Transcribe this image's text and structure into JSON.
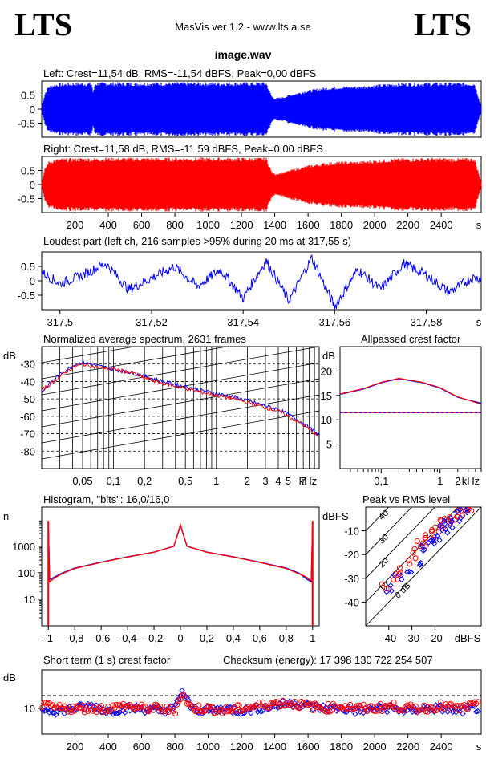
{
  "header": {
    "logo_left": "LTS",
    "logo_right": "LTS",
    "app_title": "MasVis ver 1.2 - www.lts.a.se",
    "file_name": "image.wav"
  },
  "waveform_left": {
    "title": "Left: Crest=11,54 dB, RMS=-11,54 dBFS, Peak=0,00 dBFS",
    "color": "#0000ff",
    "y_ticks": [
      "0.5",
      "0",
      "-0.5"
    ]
  },
  "waveform_right": {
    "title": "Right: Crest=11,58 dB, RMS=-11,59 dBFS, Peak=0,00 dBFS",
    "color": "#ff0000",
    "y_ticks": [
      "0.5",
      "0",
      "-0.5"
    ],
    "x_ticks": [
      "200",
      "400",
      "600",
      "800",
      "1000",
      "1200",
      "1400",
      "1600",
      "1800",
      "2000",
      "2200",
      "2400"
    ],
    "x_unit": "s"
  },
  "loudest_part": {
    "title": "Loudest part (left  ch, 216 samples >95% during 20 ms at 317,55 s)",
    "y_ticks": [
      "0.5",
      "0",
      "-0.5"
    ],
    "x_ticks": [
      "317,5",
      "317,52",
      "317,54",
      "317,56",
      "317,58"
    ],
    "x_unit": "s"
  },
  "spectrum": {
    "title": "Normalized average spectrum, 2631 frames",
    "y_unit": "dB",
    "y_ticks": [
      "-30",
      "-40",
      "-50",
      "-60",
      "-70",
      "-80"
    ],
    "x_ticks": [
      "0,05",
      "0,1",
      "0,2",
      "0,5",
      "1",
      "2",
      "3",
      "4",
      "5",
      "7"
    ],
    "x_unit": "kHz"
  },
  "allpass": {
    "title": "Allpassed crest factor",
    "y_unit": "dB",
    "y_ticks": [
      "20",
      "15",
      "10",
      "5"
    ],
    "x_ticks": [
      "0,1",
      "1",
      "2"
    ],
    "x_unit": "kHz"
  },
  "histogram": {
    "title": "Histogram, \"bits\": 16,0/16,0",
    "y_unit": "n",
    "y_ticks": [
      "1000",
      "100",
      "10"
    ],
    "x_ticks": [
      "-1",
      "-0,8",
      "-0,6",
      "-0,4",
      "-0,2",
      "0",
      "0,2",
      "0,4",
      "0,6",
      "0,8",
      "1"
    ]
  },
  "peak_rms": {
    "title": "Peak vs RMS level",
    "y_unit": "dBFS",
    "y_ticks": [
      "-10",
      "-20",
      "-30",
      "-40"
    ],
    "x_ticks": [
      "-40",
      "-30",
      "-20"
    ],
    "x_unit": "dBFS",
    "diag_labels": [
      "40",
      "30",
      "20",
      "10",
      "0 dB"
    ]
  },
  "short_term": {
    "title": "Short term (1 s) crest factor",
    "checksum": "Checksum (energy):  17 398 130 722 254 507",
    "y_unit": "dB",
    "y_ticks": [
      "10"
    ],
    "x_ticks": [
      "200",
      "400",
      "600",
      "800",
      "1000",
      "1200",
      "1400",
      "1600",
      "1800",
      "2000",
      "2200",
      "2400"
    ],
    "x_unit": "s"
  },
  "chart_data": [
    {
      "type": "area",
      "title": "Left: Crest=11,54 dB, RMS=-11,54 dBFS, Peak=0,00 dBFS",
      "xlim": [
        0,
        2640
      ],
      "ylim": [
        -1,
        1
      ],
      "x": [
        0,
        20,
        40,
        60,
        100,
        200,
        300,
        310,
        320,
        400,
        500,
        600,
        700,
        800,
        900,
        1000,
        1100,
        1200,
        1300,
        1350,
        1380,
        1400,
        1450,
        1500,
        1600,
        1700,
        1800,
        1900,
        2000,
        2100,
        2200,
        2300,
        2400,
        2500,
        2600,
        2640
      ],
      "values": [
        0.1,
        0.6,
        0.85,
        0.9,
        0.95,
        0.98,
        0.98,
        0.6,
        0.98,
        0.99,
        0.99,
        0.99,
        0.99,
        0.99,
        0.99,
        0.99,
        0.99,
        0.99,
        0.99,
        0.99,
        0.5,
        0.4,
        0.45,
        0.55,
        0.7,
        0.8,
        0.85,
        0.85,
        0.9,
        0.95,
        0.97,
        0.98,
        0.98,
        0.97,
        0.98,
        0.1
      ]
    },
    {
      "type": "area",
      "title": "Right: Crest=11,58 dB, RMS=-11,59 dBFS, Peak=0,00 dBFS",
      "xlim": [
        0,
        2640
      ],
      "ylim": [
        -1,
        1
      ],
      "x": [
        0,
        20,
        40,
        60,
        100,
        200,
        300,
        400,
        500,
        600,
        700,
        800,
        900,
        1000,
        1100,
        1200,
        1300,
        1350,
        1380,
        1400,
        1450,
        1500,
        1600,
        1700,
        1800,
        1900,
        2000,
        2100,
        2200,
        2300,
        2400,
        2500,
        2600,
        2640
      ],
      "values": [
        0.1,
        0.6,
        0.85,
        0.9,
        0.95,
        0.98,
        0.98,
        0.99,
        0.99,
        0.99,
        0.99,
        0.99,
        0.99,
        0.99,
        0.99,
        0.99,
        0.99,
        0.99,
        0.5,
        0.4,
        0.45,
        0.55,
        0.7,
        0.8,
        0.85,
        0.85,
        0.9,
        0.95,
        0.97,
        0.98,
        0.98,
        0.97,
        0.98,
        0.1
      ]
    },
    {
      "type": "line",
      "title": "Loudest part (left  ch, 216 samples >95% during 20 ms at 317,55 s)",
      "xlim": [
        317.496,
        317.592
      ],
      "ylim": [
        -1,
        1
      ],
      "x": [
        317.496,
        317.5,
        317.505,
        317.51,
        317.515,
        317.52,
        317.525,
        317.53,
        317.535,
        317.54,
        317.545,
        317.55,
        317.555,
        317.56,
        317.565,
        317.57,
        317.575,
        317.58,
        317.585,
        317.59
      ],
      "values": [
        0.3,
        -0.1,
        0.2,
        0.6,
        -0.3,
        0.1,
        0.5,
        -0.2,
        0.4,
        -0.6,
        0.7,
        -0.7,
        0.8,
        -0.9,
        0.4,
        -0.3,
        0.6,
        0.2,
        -0.4,
        0.1
      ]
    },
    {
      "type": "line",
      "title": "Normalized average spectrum, 2631 frames",
      "xlim": [
        0.02,
        10
      ],
      "ylim": [
        -90,
        -20
      ],
      "x": [
        0.02,
        0.025,
        0.03,
        0.04,
        0.05,
        0.07,
        0.1,
        0.15,
        0.2,
        0.3,
        0.5,
        0.7,
        1,
        1.5,
        2,
        3,
        4,
        5,
        7,
        10
      ],
      "series": [
        {
          "color": "#0000ff",
          "values": [
            -46,
            -40,
            -36,
            -31,
            -29,
            -31,
            -33,
            -35,
            -37,
            -40,
            -43,
            -45,
            -47,
            -49,
            -51,
            -54,
            -56,
            -59,
            -64,
            -71
          ]
        },
        {
          "color": "#ff0000",
          "values": [
            -45,
            -41,
            -37,
            -32,
            -30,
            -32,
            -33,
            -35,
            -38,
            -41,
            -44,
            -46,
            -48,
            -50,
            -52,
            -55,
            -57,
            -60,
            -65,
            -72
          ]
        }
      ]
    },
    {
      "type": "line",
      "title": "Allpassed crest factor",
      "xlim": [
        0.02,
        5
      ],
      "ylim": [
        0,
        25
      ],
      "x": [
        0.02,
        0.05,
        0.1,
        0.2,
        0.5,
        1,
        2,
        5
      ],
      "series": [
        {
          "color": "#0000ff",
          "values": [
            15.2,
            16.3,
            17.6,
            18.4,
            17.6,
            16.5,
            14.6,
            13.4
          ]
        },
        {
          "color": "#ff0000",
          "values": [
            15.3,
            16.4,
            17.7,
            18.5,
            17.7,
            16.6,
            14.7,
            13.2
          ]
        }
      ],
      "reference_level": 11.5
    },
    {
      "type": "line",
      "title": "Histogram, \"bits\": 16,0/16,0",
      "xlim": [
        -1.05,
        1.05
      ],
      "ylim": [
        1,
        30000
      ],
      "log_y": true,
      "x": [
        -1,
        -0.99,
        -0.95,
        -0.9,
        -0.8,
        -0.6,
        -0.4,
        -0.2,
        -0.05,
        0,
        0.05,
        0.2,
        0.4,
        0.6,
        0.8,
        0.9,
        0.95,
        0.99,
        1
      ],
      "series": [
        {
          "color": "#0000ff",
          "values": [
            7000,
            55,
            70,
            95,
            150,
            250,
            400,
            600,
            1000,
            6000,
            1000,
            600,
            400,
            250,
            150,
            95,
            60,
            45,
            7000
          ]
        },
        {
          "color": "#ff0000",
          "values": [
            9000,
            45,
            65,
            90,
            145,
            245,
            395,
            595,
            1000,
            6500,
            1000,
            595,
            395,
            245,
            145,
            90,
            70,
            50,
            9000
          ]
        }
      ]
    },
    {
      "type": "scatter",
      "title": "Peak vs RMS level",
      "xlim": [
        -50,
        0
      ],
      "ylim": [
        -50,
        0
      ],
      "series": [
        {
          "color": "#ff0000",
          "x": [
            -42,
            -38,
            -34,
            -30,
            -28,
            -26,
            -24,
            -22,
            -20,
            -18,
            -16,
            -14,
            -12,
            -10,
            -8,
            -6
          ],
          "values": [
            -33,
            -30,
            -27,
            -22,
            -18,
            -15,
            -13,
            -12,
            -10,
            -8,
            -6,
            -5,
            -4,
            -3,
            -2,
            -1
          ]
        },
        {
          "color": "#0000ff",
          "x": [
            -40,
            -36,
            -32,
            -28,
            -24,
            -22,
            -20,
            -18,
            -16,
            -14,
            -12,
            -10,
            -8
          ],
          "values": [
            -34,
            -29,
            -26,
            -23,
            -18,
            -15,
            -14,
            -11,
            -9,
            -7,
            -6,
            -4,
            -2
          ]
        }
      ]
    },
    {
      "type": "scatter",
      "title": "Short term (1 s) crest factor",
      "xlim": [
        0,
        2640
      ],
      "ylim": [
        0,
        25
      ],
      "reference_level": 15,
      "series": [
        {
          "color": "#0000ff",
          "x": [
            0,
            100,
            200,
            300,
            400,
            500,
            600,
            700,
            800,
            840,
            900,
            1000,
            1100,
            1200,
            1300,
            1400,
            1500,
            1600,
            1700,
            1800,
            1900,
            2000,
            2100,
            2200,
            2300,
            2400,
            2500,
            2600
          ],
          "values": [
            10,
            9,
            10,
            11,
            9,
            10,
            10,
            9,
            10,
            17,
            10,
            9,
            10,
            9,
            10,
            11,
            12,
            11,
            10,
            10,
            9,
            10,
            10,
            9,
            10,
            10,
            9,
            10
          ]
        },
        {
          "color": "#ff0000",
          "x": [
            0,
            100,
            200,
            300,
            400,
            500,
            600,
            700,
            800,
            840,
            900,
            1000,
            1100,
            1200,
            1300,
            1400,
            1500,
            1600,
            1700,
            1800,
            1900,
            2000,
            2100,
            2200,
            2300,
            2400,
            2500,
            2600
          ],
          "values": [
            11,
            10,
            10,
            10,
            10,
            11,
            10,
            10,
            9,
            16,
            10,
            10,
            9,
            10,
            11,
            12,
            12,
            11,
            10,
            11,
            10,
            10,
            11,
            10,
            10,
            11,
            10,
            11
          ]
        }
      ]
    }
  ]
}
